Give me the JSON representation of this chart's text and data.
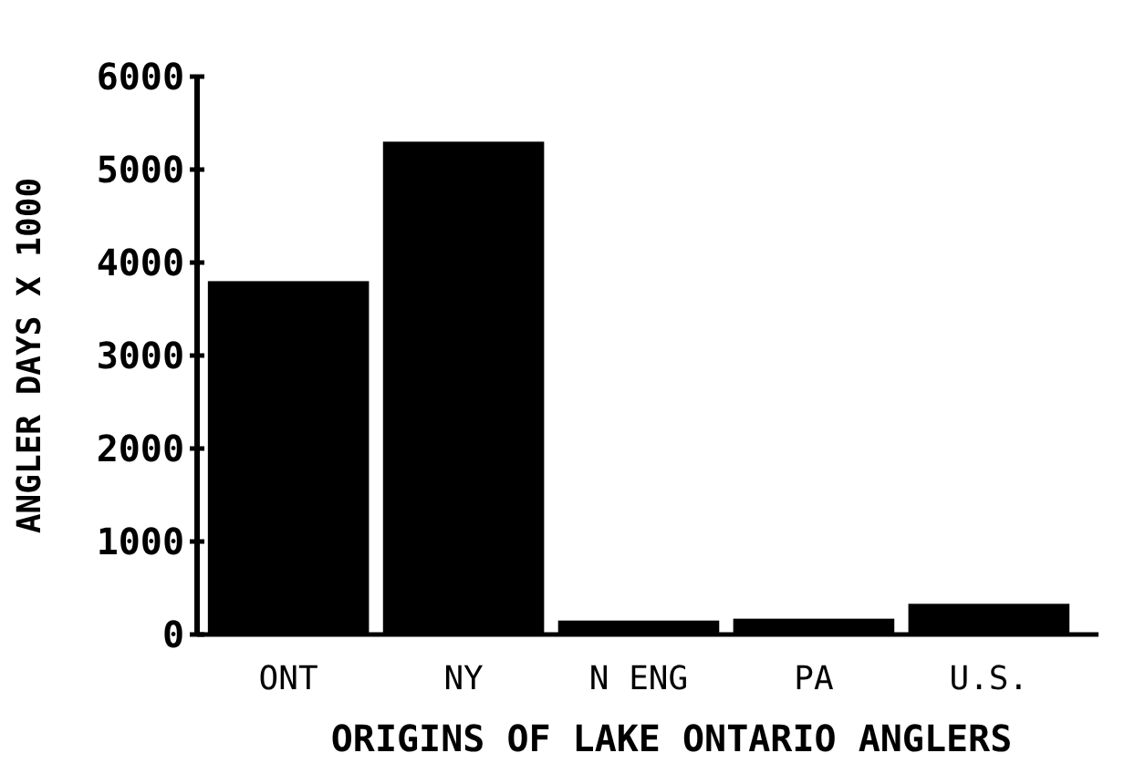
{
  "chart_data": {
    "type": "bar",
    "xlabel": "ORIGINS OF LAKE ONTARIO ANGLERS",
    "ylabel": "ANGLER DAYS X 1000",
    "categories": [
      "ONT",
      "NY",
      "N ENG",
      "PA",
      "U.S."
    ],
    "values": [
      3800,
      5300,
      150,
      170,
      330
    ],
    "color": "#000000",
    "ylim": [
      0,
      6000
    ],
    "yticks": [
      0,
      1000,
      2000,
      3000,
      4000,
      5000,
      6000
    ],
    "grid": false
  }
}
